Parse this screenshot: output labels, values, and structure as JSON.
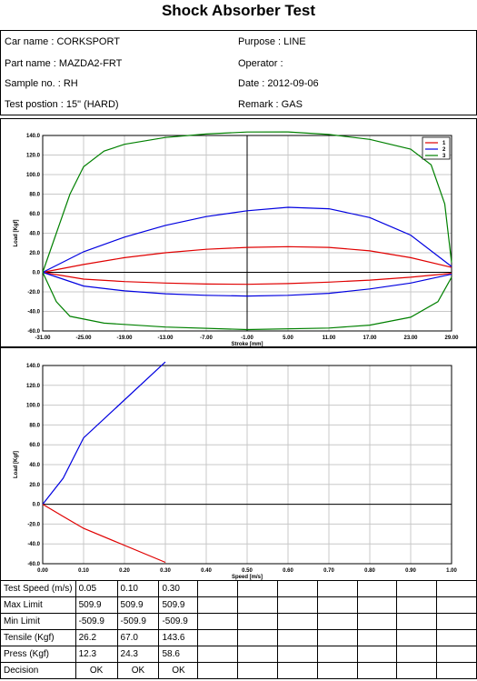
{
  "header": {
    "title": "Shock Absorber Test"
  },
  "info": {
    "left": [
      "Car name : CORKSPORT",
      "Part name : MAZDA2-FRT",
      "Sample no. : RH",
      "Test postion : 15\" (HARD)"
    ],
    "right": [
      "Purpose : LINE",
      "Operator :",
      "Date : 2012-09-06",
      "Remark : GAS"
    ]
  },
  "chart_data": [
    {
      "type": "line",
      "xlabel": "Stroke [mm]",
      "ylabel": "Load [Kgf]",
      "xticks": [
        "-31.00",
        "-25.00",
        "-19.00",
        "-13.00",
        "-7.00",
        "-1.00",
        "5.00",
        "11.00",
        "17.00",
        "23.00",
        "29.00"
      ],
      "yticks": [
        "140.0",
        "120.0",
        "100.0",
        "80.0",
        "60.0",
        "40.0",
        "20.0",
        "0.0",
        "-20.0",
        "-40.0",
        "-60.0"
      ],
      "xlim": [
        -31,
        29
      ],
      "ylim": [
        -60,
        140
      ],
      "legend": [
        "1",
        "2",
        "3"
      ],
      "colors": [
        "#e00000",
        "#0000e0",
        "#008000"
      ],
      "series": [
        {
          "name": "1",
          "upper": [
            [
              -31,
              0
            ],
            [
              -25,
              8
            ],
            [
              -19,
              15
            ],
            [
              -13,
              20
            ],
            [
              -7,
              23.5
            ],
            [
              -1,
              25.5
            ],
            [
              5,
              26.2
            ],
            [
              11,
              25.5
            ],
            [
              17,
              22
            ],
            [
              23,
              15
            ],
            [
              29,
              5
            ]
          ],
          "lower": [
            [
              -31,
              0
            ],
            [
              -25,
              -7
            ],
            [
              -19,
              -9.5
            ],
            [
              -13,
              -11
            ],
            [
              -7,
              -12
            ],
            [
              -1,
              -12.3
            ],
            [
              5,
              -11.5
            ],
            [
              11,
              -10
            ],
            [
              17,
              -8
            ],
            [
              23,
              -5
            ],
            [
              29,
              -1
            ]
          ]
        },
        {
          "name": "2",
          "upper": [
            [
              -31,
              0
            ],
            [
              -25,
              21
            ],
            [
              -19,
              36
            ],
            [
              -13,
              48
            ],
            [
              -7,
              57
            ],
            [
              -1,
              63
            ],
            [
              5,
              66.5
            ],
            [
              11,
              65
            ],
            [
              17,
              56
            ],
            [
              23,
              38
            ],
            [
              29,
              6
            ]
          ],
          "lower": [
            [
              -31,
              0
            ],
            [
              -25,
              -14
            ],
            [
              -19,
              -19
            ],
            [
              -13,
              -22
            ],
            [
              -7,
              -23.5
            ],
            [
              -1,
              -24.3
            ],
            [
              5,
              -23.5
            ],
            [
              11,
              -21.5
            ],
            [
              17,
              -17
            ],
            [
              23,
              -11
            ],
            [
              29,
              -2
            ]
          ]
        },
        {
          "name": "3",
          "upper": [
            [
              -31,
              0
            ],
            [
              -29,
              40
            ],
            [
              -27,
              80
            ],
            [
              -25,
              108
            ],
            [
              -22,
              124
            ],
            [
              -19,
              131
            ],
            [
              -13,
              138
            ],
            [
              -7,
              141.5
            ],
            [
              -1,
              143.5
            ],
            [
              5,
              143.6
            ],
            [
              11,
              141
            ],
            [
              17,
              136
            ],
            [
              23,
              126
            ],
            [
              26,
              110
            ],
            [
              28,
              70
            ],
            [
              29,
              10
            ]
          ],
          "lower": [
            [
              -31,
              0
            ],
            [
              -29,
              -30
            ],
            [
              -27,
              -45
            ],
            [
              -22,
              -52
            ],
            [
              -13,
              -56
            ],
            [
              -1,
              -58.6
            ],
            [
              11,
              -57
            ],
            [
              17,
              -54
            ],
            [
              23,
              -46
            ],
            [
              27,
              -30
            ],
            [
              29,
              -5
            ]
          ]
        }
      ]
    },
    {
      "type": "line",
      "xlabel": "Speed [m/s]",
      "ylabel": "Load [Kgf]",
      "xticks": [
        "0.00",
        "0.10",
        "0.20",
        "0.30",
        "0.40",
        "0.50",
        "0.60",
        "0.70",
        "0.80",
        "0.90",
        "1.00"
      ],
      "yticks": [
        "140.0",
        "120.0",
        "100.0",
        "80.0",
        "60.0",
        "40.0",
        "20.0",
        "0.0",
        "-20.0",
        "-40.0",
        "-60.0"
      ],
      "xlim": [
        0,
        1
      ],
      "ylim": [
        -60,
        140
      ],
      "colors": [
        "#0000e0",
        "#e00000"
      ],
      "series": [
        {
          "name": "Tensile",
          "points": [
            [
              0,
              0
            ],
            [
              0.05,
              26.2
            ],
            [
              0.1,
              67.0
            ],
            [
              0.3,
              143.6
            ]
          ]
        },
        {
          "name": "Press",
          "points": [
            [
              0,
              0
            ],
            [
              0.05,
              -12.3
            ],
            [
              0.1,
              -24.3
            ],
            [
              0.3,
              -58.6
            ]
          ]
        }
      ]
    }
  ],
  "table": {
    "rows": [
      [
        "Test Speed (m/s)",
        "0.05",
        "0.10",
        "0.30"
      ],
      [
        "Max Limit",
        "509.9",
        "509.9",
        "509.9"
      ],
      [
        "Min Limit",
        "-509.9",
        "-509.9",
        "-509.9"
      ],
      [
        "Tensile (Kgf)",
        "26.2",
        "67.0",
        "143.6"
      ],
      [
        "Press (Kgf)",
        "12.3",
        "24.3",
        "58.6"
      ],
      [
        "Decision",
        "OK",
        "OK",
        "OK"
      ]
    ]
  }
}
